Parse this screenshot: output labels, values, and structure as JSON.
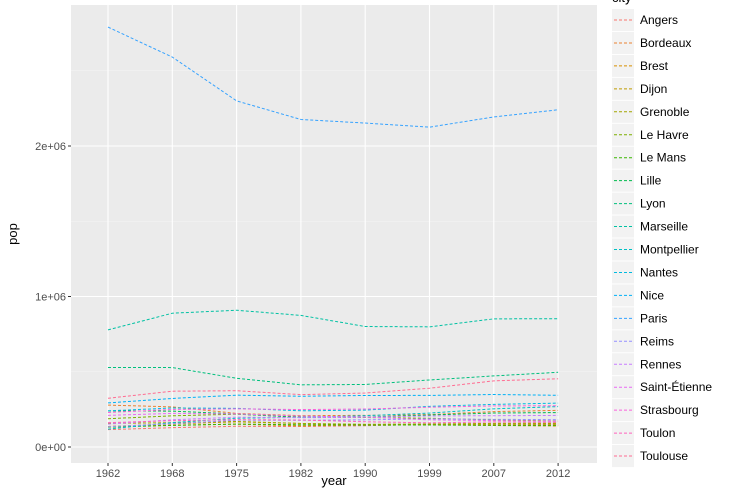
{
  "chart_data": {
    "type": "line",
    "title": "",
    "xlabel": "year",
    "ylabel": "pop",
    "legend_title": "city",
    "legend_position": "right",
    "categories": [
      "1962",
      "1968",
      "1975",
      "1982",
      "1990",
      "1999",
      "2007",
      "2012"
    ],
    "yticks": [
      0,
      1000000,
      2000000
    ],
    "ytick_labels": [
      "0e+00",
      "1e+06",
      "2e+06"
    ],
    "ylim": [
      0,
      2900000
    ],
    "line_style": "dashed",
    "series": [
      {
        "name": "Angers",
        "color": "#F8766D",
        "values": [
          115273,
          128533,
          137591,
          136038,
          141404,
          151279,
          151108,
          149017
        ]
      },
      {
        "name": "Bordeaux",
        "color": "#EA8331",
        "values": [
          278403,
          266662,
          223131,
          208159,
          210336,
          215363,
          235178,
          243626
        ]
      },
      {
        "name": "Brest",
        "color": "#D89000",
        "values": [
          136104,
          154023,
          166826,
          156060,
          147956,
          149634,
          142722,
          139676
        ]
      },
      {
        "name": "Dijon",
        "color": "#C09B00",
        "values": [
          135694,
          145357,
          151705,
          140942,
          146703,
          149867,
          151543,
          153003
        ]
      },
      {
        "name": "Grenoble",
        "color": "#A3A500",
        "values": [
          156707,
          161616,
          169740,
          156637,
          150758,
          153317,
          156793,
          158346
        ]
      },
      {
        "name": "Le Havre",
        "color": "#7CAE00",
        "values": [
          187845,
          207150,
          217882,
          199388,
          195854,
          190905,
          179751,
          173142
        ]
      },
      {
        "name": "Le Mans",
        "color": "#39B600",
        "values": [
          132181,
          143246,
          152285,
          147697,
          145502,
          146105,
          144164,
          143599
        ]
      },
      {
        "name": "Lille",
        "color": "#00BB4E",
        "values": [
          239955,
          238554,
          219204,
          196705,
          198691,
          212597,
          225789,
          228652
        ]
      },
      {
        "name": "Lyon",
        "color": "#00BF7D",
        "values": [
          528535,
          527800,
          456716,
          413095,
          415487,
          445452,
          472330,
          496343
        ]
      },
      {
        "name": "Marseille",
        "color": "#00C1A3",
        "values": [
          778071,
          889029,
          908600,
          874436,
          800550,
          798430,
          851420,
          852516
        ]
      },
      {
        "name": "Montpellier",
        "color": "#00BFC4",
        "values": [
          118864,
          161910,
          191354,
          197231,
          207996,
          225392,
          253712,
          268456
        ]
      },
      {
        "name": "Nantes",
        "color": "#00BAE0",
        "values": [
          240048,
          259208,
          256693,
          240539,
          244995,
          270251,
          283288,
          291604
        ]
      },
      {
        "name": "Nice",
        "color": "#00B0F6",
        "values": [
          292958,
          322442,
          344481,
          337085,
          342439,
          342738,
          348721,
          343629
        ]
      },
      {
        "name": "Paris",
        "color": "#35A2FF",
        "values": [
          2790091,
          2590771,
          2299830,
          2176243,
          2152423,
          2125246,
          2193030,
          2240621
        ]
      },
      {
        "name": "Reims",
        "color": "#9590FF",
        "values": [
          134856,
          154534,
          178381,
          177234,
          180620,
          187206,
          183837,
          181893
        ]
      },
      {
        "name": "Rennes",
        "color": "#C77CFF",
        "values": [
          151948,
          180943,
          198305,
          194656,
          197536,
          206229,
          207922,
          209860
        ]
      },
      {
        "name": "Saint-Étienne",
        "color": "#E76BF3",
        "values": [
          210311,
          223223,
          220181,
          204955,
          199396,
          180210,
          175318,
          172023
        ]
      },
      {
        "name": "Strasbourg",
        "color": "#FA62DB",
        "values": [
          228971,
          249396,
          253384,
          248712,
          252338,
          264115,
          272975,
          274394
        ]
      },
      {
        "name": "Toulon",
        "color": "#FF62BC",
        "values": [
          161797,
          174746,
          181801,
          179423,
          167619,
          160639,
          166537,
          164899
        ]
      },
      {
        "name": "Toulouse",
        "color": "#FF6C91",
        "values": [
          323724,
          370796,
          373796,
          347995,
          358688,
          390350,
          439553,
          453317
        ]
      }
    ]
  }
}
